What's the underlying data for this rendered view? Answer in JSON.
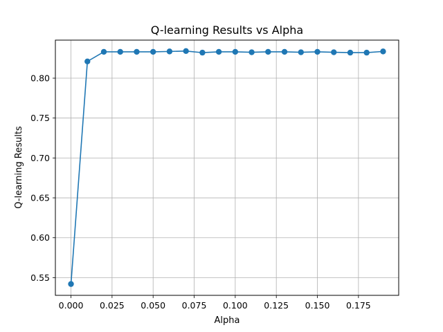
{
  "chart_data": {
    "type": "line",
    "title": "Q-learning Results vs Alpha",
    "xlabel": "Alpha",
    "ylabel": "Q-learning Results",
    "xlim": [
      -0.0095,
      0.1995
    ],
    "ylim": [
      0.5278,
      0.8477
    ],
    "x_ticks": [
      0.0,
      0.025,
      0.05,
      0.075,
      0.1,
      0.125,
      0.15,
      0.175
    ],
    "x_tick_labels": [
      "0.000",
      "0.025",
      "0.050",
      "0.075",
      "0.100",
      "0.125",
      "0.150",
      "0.175"
    ],
    "y_ticks": [
      0.55,
      0.6,
      0.65,
      0.7,
      0.75,
      0.8
    ],
    "y_tick_labels": [
      "0.55",
      "0.60",
      "0.65",
      "0.70",
      "0.75",
      "0.80"
    ],
    "grid": true,
    "color": "#1f77b4",
    "marker": "circle",
    "series": [
      {
        "x": [
          0.0,
          0.01,
          0.02,
          0.03,
          0.04,
          0.05,
          0.06,
          0.07,
          0.08,
          0.09,
          0.1,
          0.11,
          0.12,
          0.13,
          0.14,
          0.15,
          0.16,
          0.17,
          0.18,
          0.19
        ],
        "y": [
          0.542,
          0.821,
          0.833,
          0.833,
          0.833,
          0.833,
          0.8335,
          0.834,
          0.832,
          0.833,
          0.833,
          0.8325,
          0.833,
          0.833,
          0.8325,
          0.833,
          0.8325,
          0.832,
          0.832,
          0.8335
        ]
      }
    ]
  }
}
